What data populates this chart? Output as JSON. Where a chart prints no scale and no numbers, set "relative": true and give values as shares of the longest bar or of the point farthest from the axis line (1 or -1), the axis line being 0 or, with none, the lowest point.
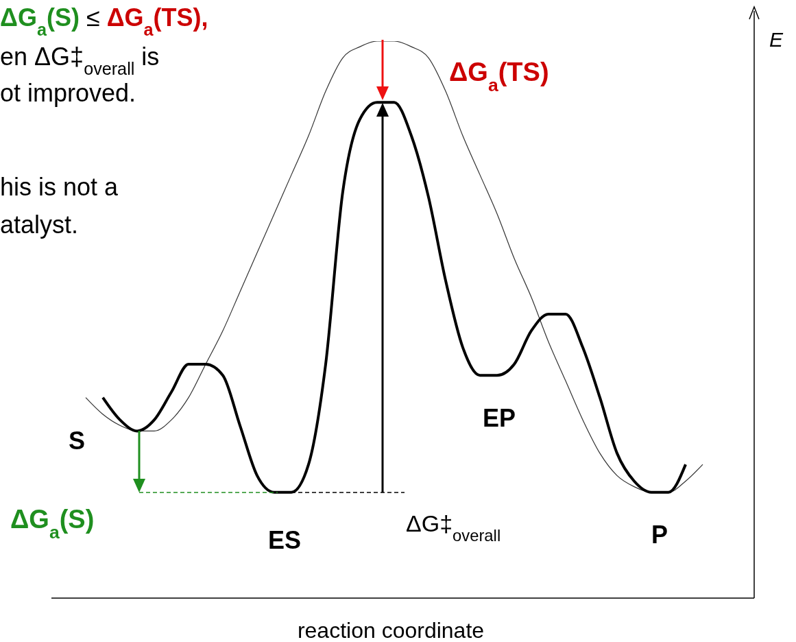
{
  "chart_data": {
    "type": "line",
    "relative": true,
    "categories": [
      null,
      null,
      null,
      null,
      null,
      null,
      null,
      null,
      null,
      null,
      null,
      null,
      null,
      null,
      null,
      null,
      null,
      null,
      null,
      null,
      null,
      null,
      null,
      null,
      null,
      null,
      null,
      null,
      null,
      null,
      null,
      null,
      null,
      null,
      null,
      null,
      null
    ],
    "series": [
      {
        "color": "#333333",
        "values": [
          0.36,
          0.33,
          0.31,
          0.3,
          0.3,
          0.32,
          0.36,
          0.42,
          0.48,
          0.55,
          0.62,
          0.69,
          0.76,
          0.83,
          0.91,
          0.97,
          0.99,
          1,
          1,
          0.99,
          0.97,
          0.91,
          0.83,
          0.76,
          0.69,
          0.61,
          0.54,
          0.46,
          0.39,
          0.32,
          0.26,
          0.22,
          0.2,
          0.19,
          0.19,
          0.21,
          0.24
        ]
      },
      {
        "color": "#000000",
        "values": [
          null,
          0.36,
          0.32,
          0.3,
          0.32,
          0.37,
          0.42,
          0.42,
          0.4,
          0.31,
          0.22,
          0.19,
          0.19,
          0.24,
          0.42,
          0.73,
          0.86,
          0.89,
          0.89,
          0.83,
          0.72,
          0.57,
          0.45,
          0.4,
          0.4,
          0.42,
          0.48,
          0.51,
          0.51,
          0.45,
          0.36,
          0.26,
          0.21,
          0.19,
          0.19,
          0.24,
          null
        ]
      }
    ],
    "xlabel": "reaction coordinate",
    "ylabel": "E",
    "annotations": [
      "ΔG$_{a}$(S)",
      "≤",
      "ΔG$_{a}$(TS),",
      "en ΔG‡$_{overall}$ is",
      "ot improved.",
      "his is not a",
      "atalyst.",
      "ΔG$_{a}$(TS)",
      "S",
      "ES",
      "EP",
      "P",
      "ΔG$_{a}$(S)",
      "ΔG‡$_{overall}$"
    ]
  }
}
